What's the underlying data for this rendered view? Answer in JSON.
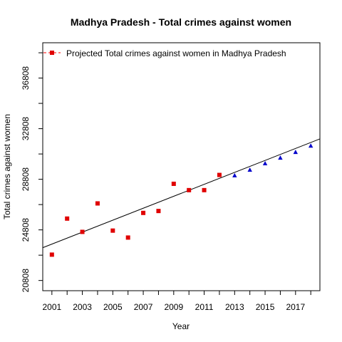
{
  "chart_data": {
    "type": "scatter",
    "title": "Madhya Pradesh  -  Total crimes against women",
    "xlabel": "Year",
    "ylabel": "Total crimes against women",
    "xlim": [
      2000.4,
      2018.6
    ],
    "ylim": [
      20000,
      39600
    ],
    "x_ticks": [
      2001,
      2003,
      2005,
      2007,
      2009,
      2011,
      2013,
      2015,
      2017
    ],
    "x_minor_ticks": [
      2002,
      2004,
      2006,
      2008,
      2010,
      2012,
      2014,
      2016,
      2018
    ],
    "y_ticks": [
      20808,
      24808,
      28808,
      32808,
      36808
    ],
    "y_minor_ticks": [
      22808,
      26808,
      30808,
      34808,
      38808
    ],
    "legend": {
      "placement": "top-left",
      "label": "Projected  Total crimes against women  in  Madhya Pradesh",
      "color": "#ff0000"
    },
    "series": [
      {
        "kind": "observed",
        "marker": "square",
        "color": "#e00000",
        "x": [
          2001,
          2002,
          2003,
          2004,
          2005,
          2006,
          2007,
          2008,
          2009,
          2010,
          2011,
          2012
        ],
        "y": [
          22850,
          25700,
          24650,
          26900,
          24750,
          24200,
          26150,
          26300,
          28450,
          27950,
          27950,
          29150
        ]
      },
      {
        "kind": "projected",
        "marker": "triangle",
        "color": "#0000cc",
        "x": [
          2013,
          2014,
          2015,
          2016,
          2017,
          2018
        ],
        "y": [
          29100,
          29550,
          30050,
          30500,
          30950,
          31450
        ]
      }
    ],
    "trend_line": {
      "x": [
        2000.4,
        2018.6
      ],
      "y": [
        23400,
        32000
      ],
      "color": "#000000"
    },
    "grid": false
  }
}
